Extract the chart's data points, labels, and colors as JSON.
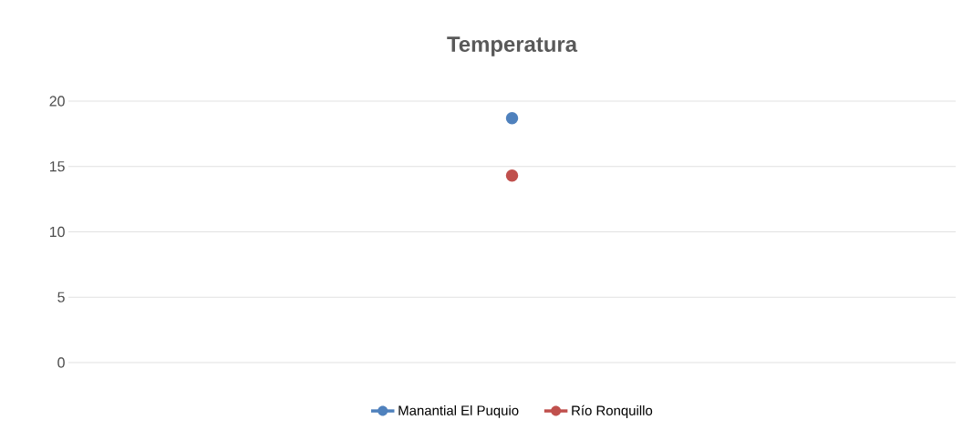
{
  "chart_data": {
    "type": "line",
    "title": "Temperatura",
    "categories": [
      null
    ],
    "series": [
      {
        "name": "Manantial El Puquio",
        "color": "#4f81bd",
        "values": [
          18.7
        ]
      },
      {
        "name": "Río Ronquillo",
        "color": "#c0504d",
        "values": [
          14.3
        ]
      }
    ],
    "ylim": [
      0,
      20
    ],
    "yticks": [
      0,
      5,
      10,
      15,
      20
    ],
    "grid": "y",
    "legend": "bottom",
    "marker": "circle"
  }
}
